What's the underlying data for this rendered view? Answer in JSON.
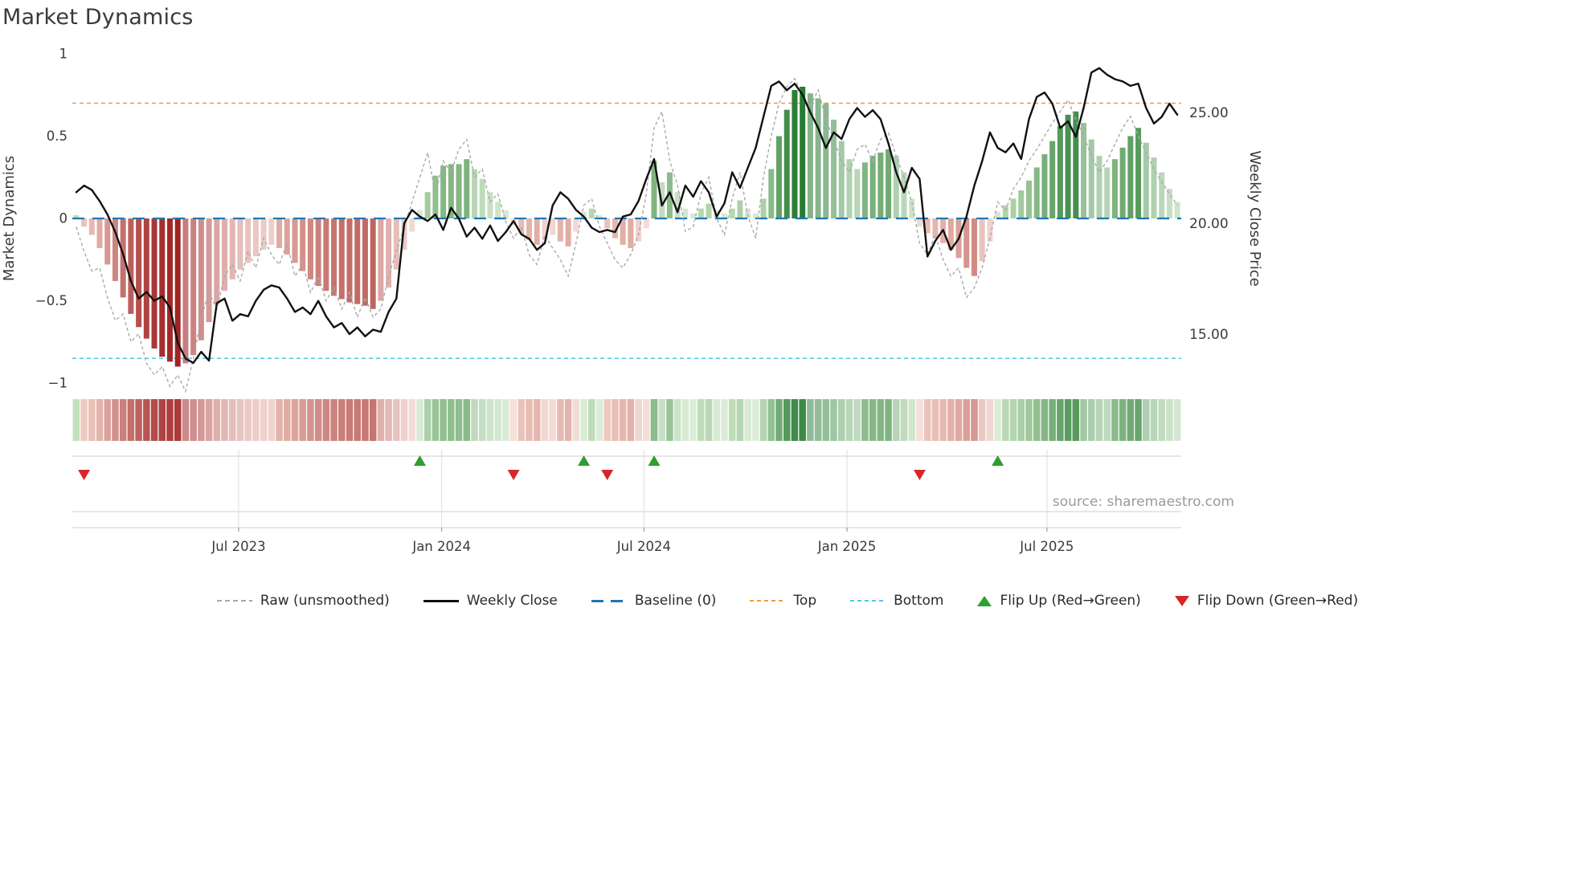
{
  "title": "Market Dynamics",
  "source": "source: sharemaestro.com",
  "legend": {
    "items": [
      {
        "label": "Raw (unsmoothed)"
      },
      {
        "label": "Weekly Close"
      },
      {
        "label": "Baseline (0)"
      },
      {
        "label": "Top"
      },
      {
        "label": "Bottom"
      },
      {
        "label": "Flip Up (Red→Green)"
      },
      {
        "label": "Flip Down (Green→Red)"
      }
    ]
  },
  "colors": {
    "baseline": "#1f77b4",
    "top": "#ee9b44",
    "bottom": "#4fc6ee",
    "raw": "#aaaaaa",
    "weekly_close": "#111111",
    "flip_up": "#2ca02c",
    "flip_down": "#d62728",
    "bar_red_dark": "#a02323",
    "bar_red_light": "#f0cdc2",
    "bar_green_dark": "#157022",
    "bar_green_light": "#c2dfba"
  },
  "chart_data": {
    "type": "composite",
    "title": "Market Dynamics",
    "x_unit": "week",
    "x_ticks": [
      {
        "label": "Jul 2023",
        "index": 20.8
      },
      {
        "label": "Jan 2024",
        "index": 46.8
      },
      {
        "label": "Jul 2024",
        "index": 72.7
      },
      {
        "label": "Jan 2025",
        "index": 98.7
      },
      {
        "label": "Jul 2025",
        "index": 124.3
      }
    ],
    "left_axis": {
      "label": "Market Dynamics",
      "range": [
        -1.05,
        1.05
      ],
      "ticks": [
        {
          "label": "1",
          "value": 1
        },
        {
          "label": "0.5",
          "value": 0.5
        },
        {
          "label": "0",
          "value": 0
        },
        {
          "label": "−0.5",
          "value": -0.5
        },
        {
          "label": "−1",
          "value": -1
        }
      ]
    },
    "right_axis": {
      "label": "Weekly Close Price",
      "ticks": [
        {
          "label": "25.00",
          "value": 25
        },
        {
          "label": "20.00",
          "value": 20
        },
        {
          "label": "15.00",
          "value": 15
        }
      ]
    },
    "reference_lines": {
      "baseline": 0,
      "top": 0.7,
      "bottom": -0.85
    },
    "oscillator": [
      0.02,
      -0.05,
      -0.1,
      -0.18,
      -0.28,
      -0.38,
      -0.48,
      -0.58,
      -0.66,
      -0.73,
      -0.79,
      -0.84,
      -0.87,
      -0.9,
      -0.88,
      -0.83,
      -0.74,
      -0.63,
      -0.52,
      -0.44,
      -0.37,
      -0.31,
      -0.27,
      -0.23,
      -0.19,
      -0.16,
      -0.18,
      -0.22,
      -0.27,
      -0.32,
      -0.37,
      -0.41,
      -0.44,
      -0.47,
      -0.49,
      -0.51,
      -0.52,
      -0.53,
      -0.55,
      -0.5,
      -0.42,
      -0.31,
      -0.19,
      -0.08,
      0.05,
      0.16,
      0.26,
      0.32,
      0.33,
      0.33,
      0.36,
      0.3,
      0.24,
      0.16,
      0.1,
      0.05,
      -0.04,
      -0.09,
      -0.13,
      -0.16,
      -0.13,
      -0.1,
      -0.14,
      -0.17,
      -0.08,
      0.04,
      0.06,
      0.02,
      -0.06,
      -0.12,
      -0.16,
      -0.18,
      -0.14,
      -0.06,
      0.35,
      0.22,
      0.28,
      0.16,
      0.06,
      0.03,
      0.06,
      0.09,
      0.05,
      0.03,
      0.06,
      0.11,
      0.06,
      0.03,
      0.12,
      0.3,
      0.5,
      0.66,
      0.78,
      0.8,
      0.76,
      0.73,
      0.7,
      0.6,
      0.47,
      0.36,
      0.3,
      0.34,
      0.38,
      0.4,
      0.42,
      0.38,
      0.28,
      0.12,
      -0.05,
      -0.09,
      -0.12,
      -0.15,
      -0.19,
      -0.24,
      -0.3,
      -0.35,
      -0.26,
      -0.14,
      0.04,
      0.08,
      0.12,
      0.17,
      0.23,
      0.31,
      0.39,
      0.47,
      0.56,
      0.63,
      0.65,
      0.58,
      0.48,
      0.38,
      0.31,
      0.36,
      0.43,
      0.5,
      0.55,
      0.46,
      0.37,
      0.28,
      0.18,
      0.1
    ],
    "raw": [
      -0.05,
      -0.2,
      -0.32,
      -0.3,
      -0.48,
      -0.62,
      -0.58,
      -0.75,
      -0.7,
      -0.88,
      -0.95,
      -0.9,
      -1.02,
      -0.95,
      -1.05,
      -0.85,
      -0.6,
      -0.45,
      -0.55,
      -0.35,
      -0.28,
      -0.38,
      -0.2,
      -0.3,
      -0.12,
      -0.22,
      -0.28,
      -0.15,
      -0.35,
      -0.28,
      -0.45,
      -0.35,
      -0.5,
      -0.42,
      -0.55,
      -0.45,
      -0.6,
      -0.48,
      -0.6,
      -0.55,
      -0.35,
      -0.2,
      -0.05,
      0.1,
      0.25,
      0.4,
      0.15,
      0.35,
      0.28,
      0.42,
      0.48,
      0.25,
      0.3,
      0.1,
      0.15,
      -0.02,
      -0.12,
      -0.05,
      -0.22,
      -0.28,
      -0.1,
      -0.18,
      -0.25,
      -0.35,
      -0.15,
      0.08,
      0.12,
      -0.05,
      -0.15,
      -0.25,
      -0.3,
      -0.22,
      -0.1,
      0.15,
      0.55,
      0.65,
      0.35,
      0.2,
      -0.08,
      -0.05,
      0.15,
      0.25,
      0.0,
      -0.1,
      0.12,
      0.28,
      0.02,
      -0.12,
      0.25,
      0.5,
      0.7,
      0.8,
      0.85,
      0.75,
      0.68,
      0.78,
      0.6,
      0.48,
      0.35,
      0.28,
      0.42,
      0.45,
      0.35,
      0.48,
      0.52,
      0.38,
      0.25,
      0.1,
      -0.15,
      -0.22,
      -0.1,
      -0.25,
      -0.35,
      -0.3,
      -0.48,
      -0.42,
      -0.3,
      -0.12,
      0.1,
      0.05,
      0.18,
      0.25,
      0.35,
      0.42,
      0.5,
      0.58,
      0.65,
      0.72,
      0.6,
      0.5,
      0.38,
      0.28,
      0.35,
      0.45,
      0.55,
      0.62,
      0.5,
      0.4,
      0.3,
      0.22,
      0.15,
      0.08
    ],
    "weekly_close": [
      21.4,
      21.7,
      21.5,
      21.0,
      20.4,
      19.6,
      18.6,
      17.4,
      16.6,
      16.9,
      16.5,
      16.7,
      16.2,
      14.6,
      13.9,
      13.7,
      14.2,
      13.8,
      16.4,
      16.6,
      15.6,
      15.9,
      15.8,
      16.5,
      17.0,
      17.2,
      17.1,
      16.6,
      16.0,
      16.2,
      15.9,
      16.5,
      15.8,
      15.3,
      15.5,
      15.0,
      15.3,
      14.9,
      15.2,
      15.1,
      16.0,
      16.6,
      20.0,
      20.6,
      20.3,
      20.1,
      20.4,
      19.7,
      20.7,
      20.2,
      19.4,
      19.8,
      19.3,
      19.9,
      19.2,
      19.6,
      20.1,
      19.5,
      19.3,
      18.8,
      19.1,
      20.8,
      21.4,
      21.1,
      20.6,
      20.3,
      19.8,
      19.6,
      19.7,
      19.6,
      20.3,
      20.4,
      21.0,
      22.0,
      22.9,
      20.8,
      21.4,
      20.5,
      21.7,
      21.2,
      21.9,
      21.4,
      20.3,
      20.9,
      22.3,
      21.6,
      22.5,
      23.4,
      24.8,
      26.2,
      26.4,
      26.0,
      26.3,
      25.8,
      25.0,
      24.3,
      23.4,
      24.1,
      23.8,
      24.7,
      25.2,
      24.8,
      25.1,
      24.7,
      23.6,
      22.3,
      21.4,
      22.5,
      22.0,
      18.5,
      19.2,
      19.7,
      18.8,
      19.3,
      20.3,
      21.7,
      22.8,
      24.1,
      23.4,
      23.2,
      23.6,
      22.9,
      24.7,
      25.7,
      25.9,
      25.4,
      24.3,
      24.6,
      23.9,
      25.2,
      26.8,
      27.0,
      26.7,
      26.5,
      26.4,
      26.2,
      26.3,
      25.2,
      24.5,
      24.8,
      25.4,
      24.9
    ],
    "flip_up_indices": [
      44,
      65,
      74,
      118
    ],
    "flip_down_indices": [
      1,
      56,
      68,
      108
    ]
  }
}
